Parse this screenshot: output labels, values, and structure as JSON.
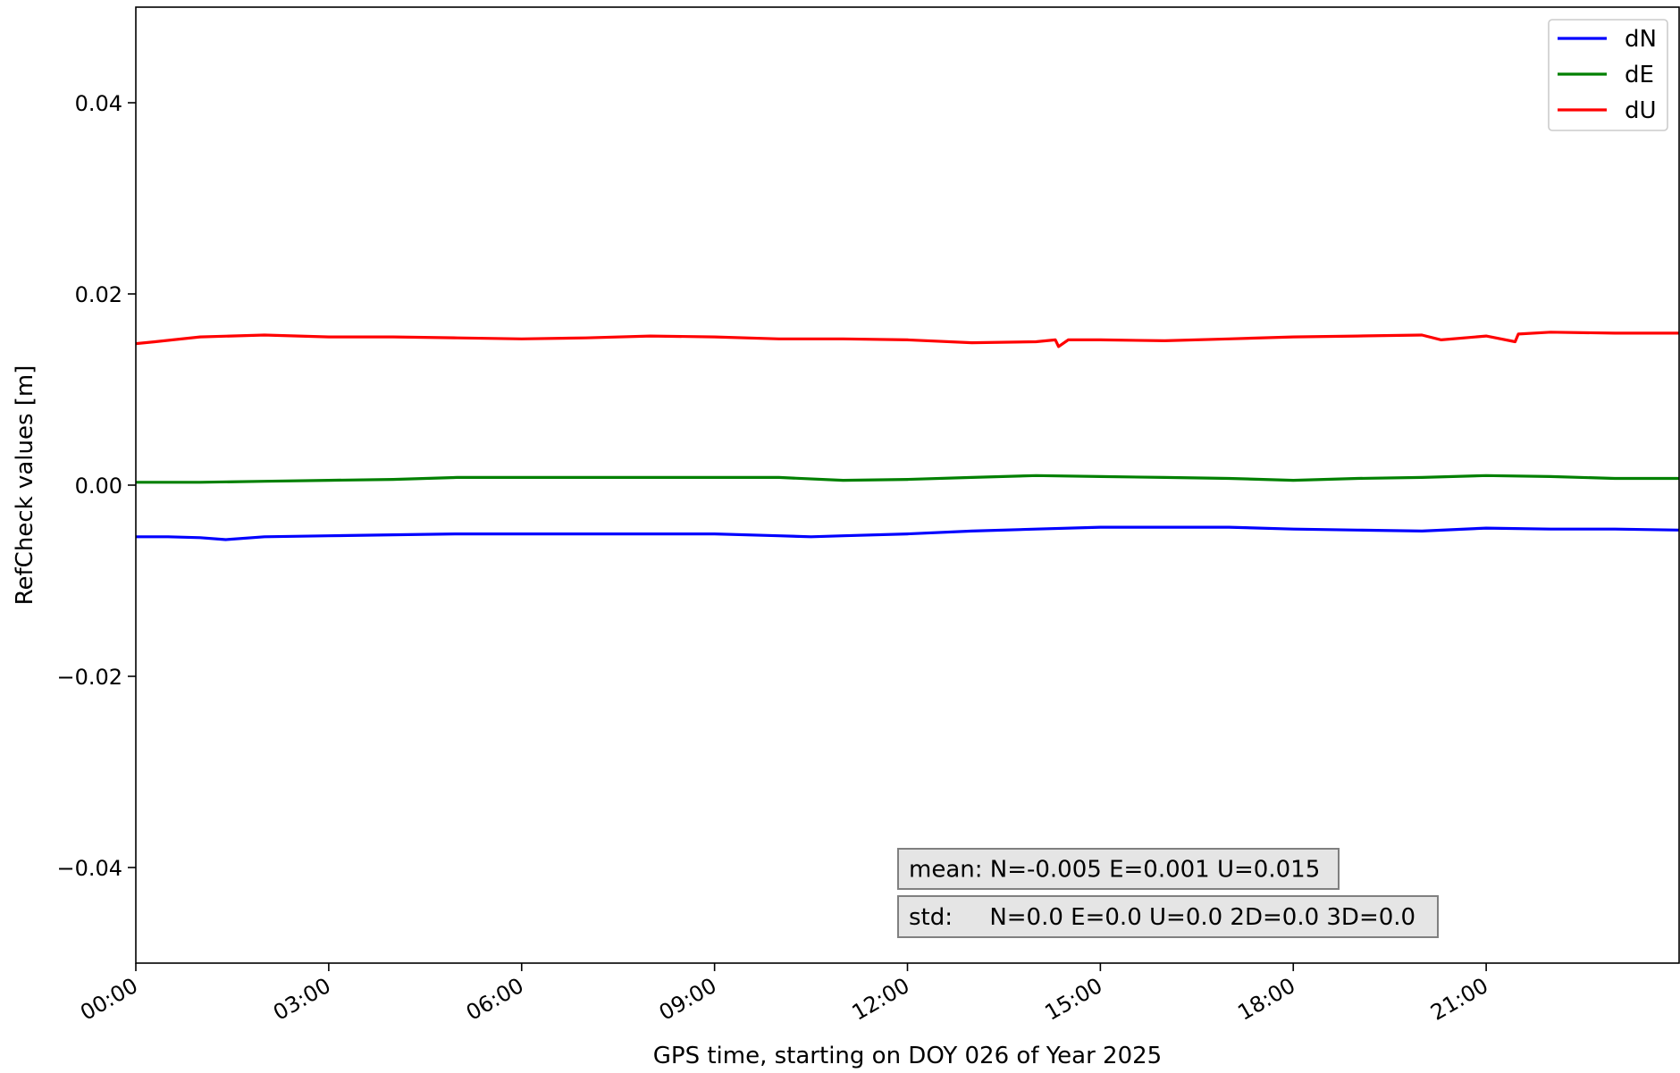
{
  "chart_data": {
    "type": "line",
    "xlabel": "GPS time, starting on DOY 026 of Year 2025",
    "ylabel": "RefCheck values [m]",
    "x_unit": "hours",
    "xlim": [
      0,
      24
    ],
    "ylim": [
      -0.05,
      0.05
    ],
    "x_ticks": [
      0,
      3,
      6,
      9,
      12,
      15,
      18,
      21
    ],
    "x_tick_labels": [
      "00:00",
      "03:00",
      "06:00",
      "09:00",
      "12:00",
      "15:00",
      "18:00",
      "21:00"
    ],
    "y_ticks": [
      -0.04,
      -0.02,
      0.0,
      0.02,
      0.04
    ],
    "y_tick_labels": [
      "−0.04",
      "−0.02",
      "0.00",
      "0.02",
      "0.04"
    ],
    "grid": false,
    "legend_position": "top-right",
    "series": [
      {
        "name": "dN",
        "color": "#0000ff",
        "x": [
          0,
          0.5,
          1.0,
          1.4,
          2.0,
          3.0,
          4.0,
          5.0,
          6.0,
          7.0,
          8.0,
          9.0,
          10.0,
          10.5,
          11.0,
          12.0,
          13.0,
          14.0,
          15.0,
          16.0,
          17.0,
          18.0,
          19.0,
          20.0,
          21.0,
          22.0,
          23.0,
          24.0
        ],
        "y": [
          -0.0054,
          -0.0054,
          -0.0055,
          -0.0057,
          -0.0054,
          -0.0053,
          -0.0052,
          -0.0051,
          -0.0051,
          -0.0051,
          -0.0051,
          -0.0051,
          -0.0053,
          -0.0054,
          -0.0053,
          -0.0051,
          -0.0048,
          -0.0046,
          -0.0044,
          -0.0044,
          -0.0044,
          -0.0046,
          -0.0047,
          -0.0048,
          -0.0045,
          -0.0046,
          -0.0046,
          -0.0047
        ]
      },
      {
        "name": "dE",
        "color": "#008000",
        "x": [
          0,
          1.0,
          2.0,
          3.0,
          4.0,
          5.0,
          6.0,
          7.0,
          8.0,
          9.0,
          10.0,
          11.0,
          12.0,
          13.0,
          14.0,
          15.0,
          16.0,
          17.0,
          18.0,
          19.0,
          20.0,
          21.0,
          22.0,
          23.0,
          24.0
        ],
        "y": [
          0.0003,
          0.0003,
          0.0004,
          0.0005,
          0.0006,
          0.0008,
          0.0008,
          0.0008,
          0.0008,
          0.0008,
          0.0008,
          0.0005,
          0.0006,
          0.0008,
          0.001,
          0.0009,
          0.0008,
          0.0007,
          0.0005,
          0.0007,
          0.0008,
          0.001,
          0.0009,
          0.0007,
          0.0007
        ]
      },
      {
        "name": "dU",
        "color": "#ff0000",
        "x": [
          0,
          0.3,
          1.0,
          2.0,
          3.0,
          4.0,
          5.0,
          6.0,
          7.0,
          8.0,
          9.0,
          10.0,
          11.0,
          12.0,
          13.0,
          14.0,
          14.3,
          14.35,
          14.5,
          15.0,
          16.0,
          17.0,
          18.0,
          19.0,
          20.0,
          20.3,
          21.0,
          21.45,
          21.5,
          22.0,
          23.0,
          24.0
        ],
        "y": [
          0.0148,
          0.015,
          0.0155,
          0.0157,
          0.0155,
          0.0155,
          0.0154,
          0.0153,
          0.0154,
          0.0156,
          0.0155,
          0.0153,
          0.0153,
          0.0152,
          0.0149,
          0.015,
          0.0152,
          0.0145,
          0.0152,
          0.0152,
          0.0151,
          0.0153,
          0.0155,
          0.0156,
          0.0157,
          0.0152,
          0.0156,
          0.015,
          0.0158,
          0.016,
          0.0159,
          0.0159
        ]
      }
    ],
    "annotations": [
      "mean: N=-0.005 E=0.001 U=0.015",
      "std:     N=0.0 E=0.0 U=0.0 2D=0.0 3D=0.0"
    ]
  }
}
